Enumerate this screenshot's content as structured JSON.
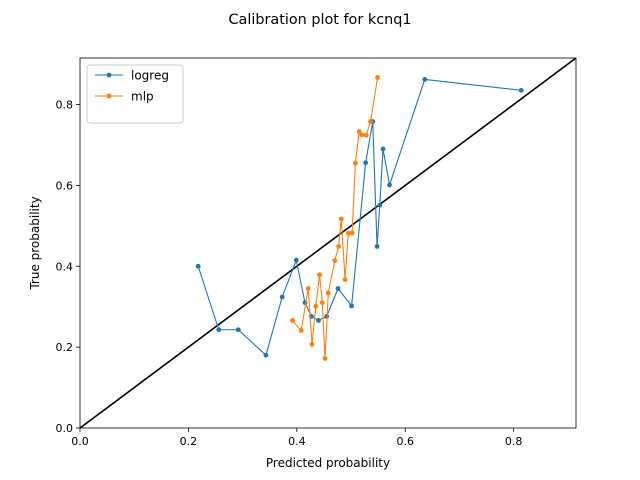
{
  "chart_data": {
    "type": "line",
    "title": "Calibration plot for kcnq1",
    "xlabel": "Predicted probability",
    "ylabel": "True probability",
    "xlim": [
      0,
      0.915
    ],
    "ylim": [
      0,
      0.915
    ],
    "xticks": [
      0.0,
      0.2,
      0.4,
      0.6,
      0.8
    ],
    "yticks": [
      0.0,
      0.2,
      0.4,
      0.6,
      0.8
    ],
    "grid": false,
    "legend_position": "top-left",
    "reference_line": {
      "x": [
        0,
        0.915
      ],
      "y": [
        0,
        0.915
      ],
      "color": "#000000"
    },
    "series": [
      {
        "name": "logreg",
        "color": "#1f77b4",
        "x": [
          0.218,
          0.256,
          0.292,
          0.343,
          0.373,
          0.399,
          0.415,
          0.427,
          0.44,
          0.455,
          0.476,
          0.501,
          0.527,
          0.54,
          0.548,
          0.553,
          0.559,
          0.571,
          0.636,
          0.814
        ],
        "y": [
          0.4,
          0.243,
          0.243,
          0.18,
          0.324,
          0.415,
          0.31,
          0.276,
          0.266,
          0.276,
          0.345,
          0.302,
          0.656,
          0.758,
          0.449,
          0.551,
          0.69,
          0.601,
          0.862,
          0.835
        ]
      },
      {
        "name": "mlp",
        "color": "#ff7f0e",
        "x": [
          0.392,
          0.408,
          0.421,
          0.428,
          0.435,
          0.442,
          0.447,
          0.452,
          0.458,
          0.47,
          0.477,
          0.482,
          0.489,
          0.495,
          0.502,
          0.508,
          0.515,
          0.52,
          0.528,
          0.536,
          0.549
        ],
        "y": [
          0.266,
          0.241,
          0.345,
          0.207,
          0.301,
          0.379,
          0.31,
          0.172,
          0.334,
          0.414,
          0.449,
          0.517,
          0.367,
          0.482,
          0.482,
          0.655,
          0.733,
          0.725,
          0.724,
          0.758,
          0.867
        ]
      }
    ]
  }
}
